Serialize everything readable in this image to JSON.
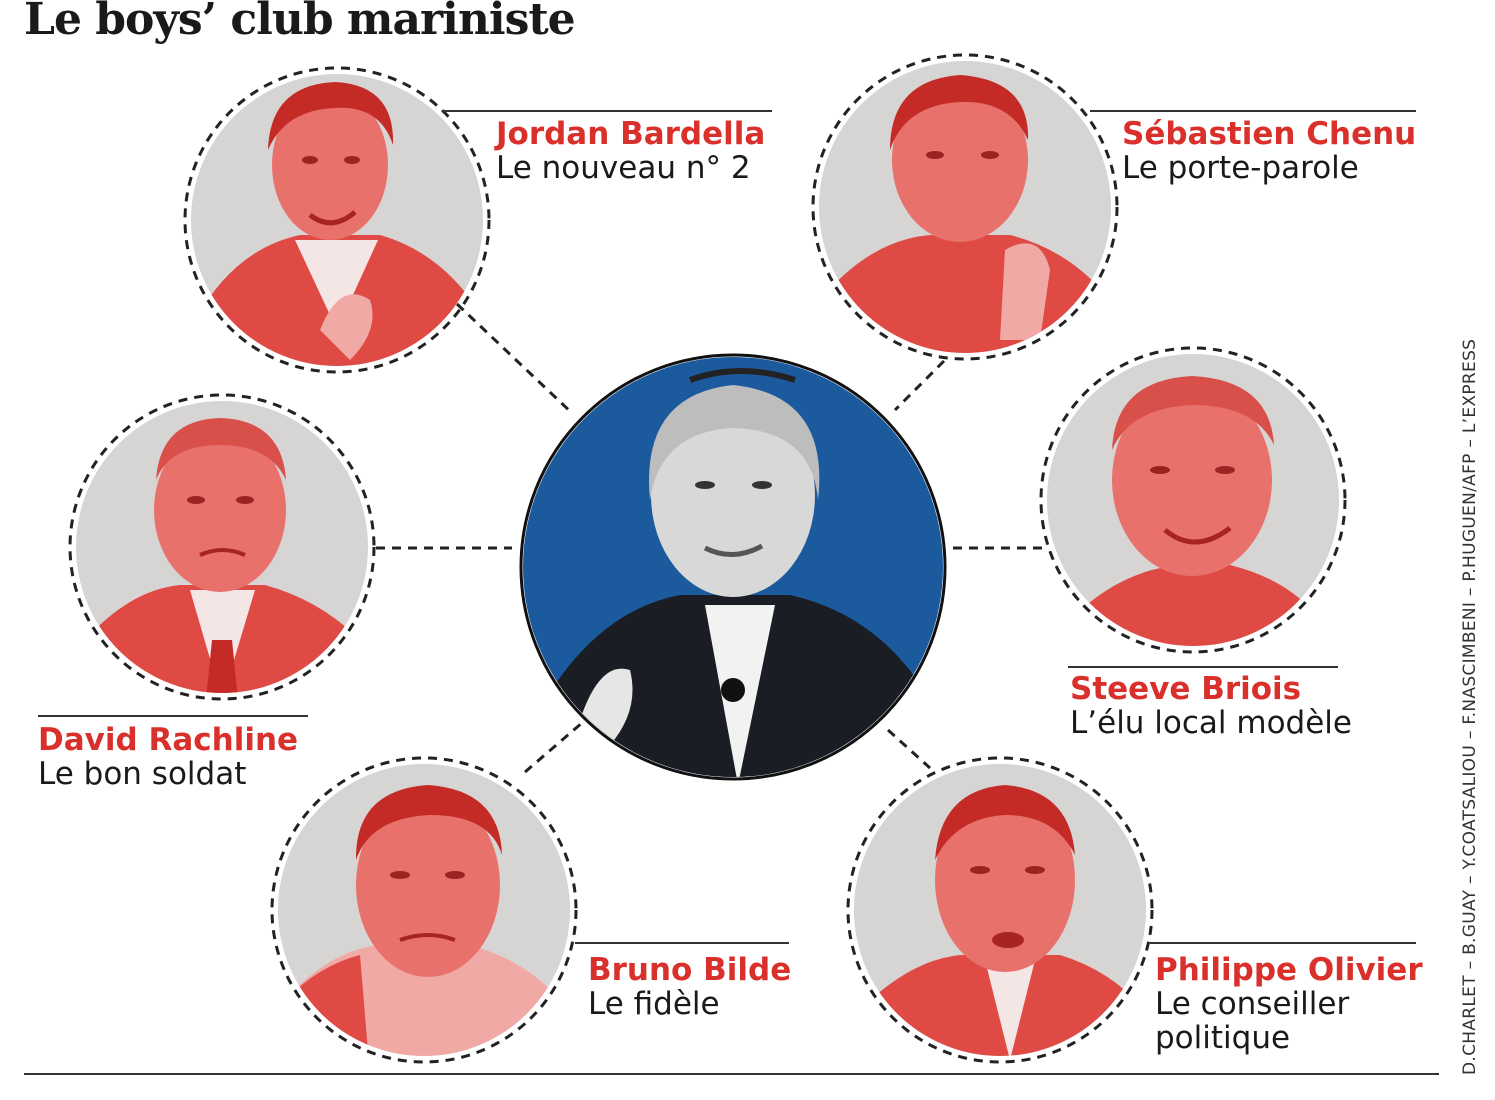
{
  "title": "Le boys’ club mariniste",
  "colors": {
    "accent_red": "#d9302b",
    "portrait_red": "#e04a45",
    "portrait_bg": "#d7d4d4",
    "center_blue": "#1c5a9e",
    "center_dark": "#1b1d24"
  },
  "center": {
    "portrait_icon": "center-portrait-icon"
  },
  "people": [
    {
      "name": "Jordan Bardella",
      "role": "Le nouveau n° 2"
    },
    {
      "name": "Sébastien Chenu",
      "role": "Le porte-parole"
    },
    {
      "name": "David Rachline",
      "role": "Le bon soldat"
    },
    {
      "name": "Steeve Briois",
      "role": "L’élu local modèle"
    },
    {
      "name": "Bruno Bilde",
      "role": "Le fidèle"
    },
    {
      "name": "Philippe Olivier",
      "role": "Le conseiller",
      "role2": "politique"
    }
  ],
  "credit": "D.CHARLET – B.GUAY – Y.COATSALIOU – F.NASCIMBENI – P.HUGUEN/AFP – L’EXPRESS"
}
